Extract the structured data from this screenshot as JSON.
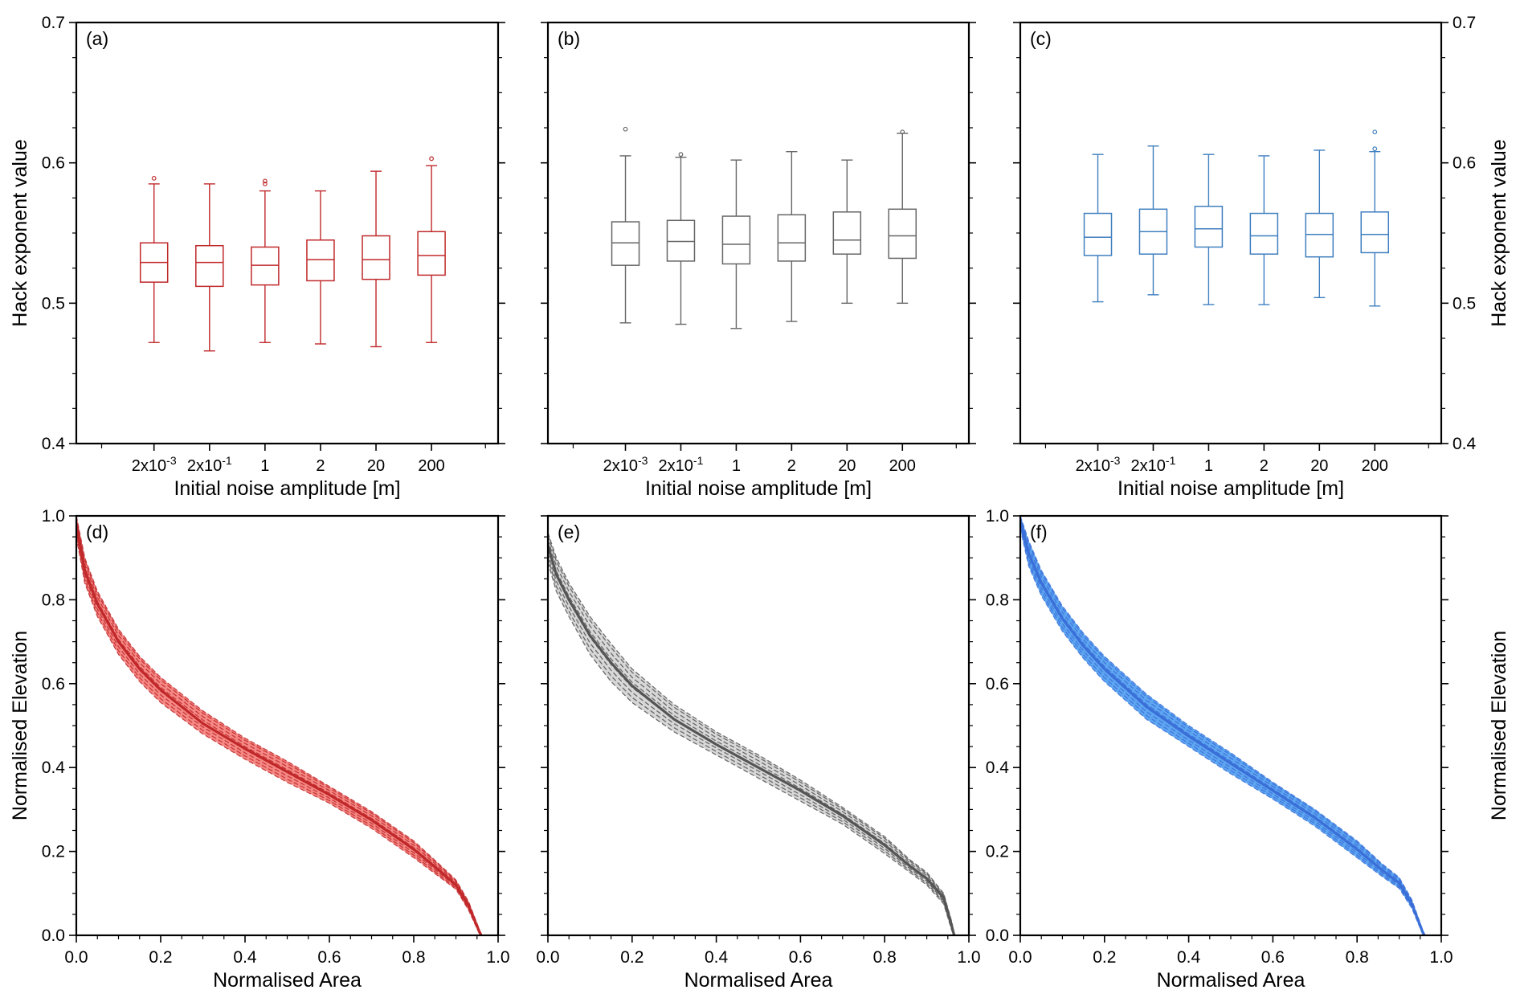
{
  "figure": {
    "background": "#ffffff",
    "axis_color": "#000000"
  },
  "chart_data": [
    {
      "type": "box",
      "panel_label": "(a)",
      "color": "#c0282a",
      "categories": [
        "2x10-3",
        "2x10-1",
        "1",
        "2",
        "20",
        "200"
      ],
      "category_labels": [
        {
          "base": "2x10",
          "exp": "-3"
        },
        {
          "base": "2x10",
          "exp": "-1"
        },
        {
          "base": "1",
          "exp": ""
        },
        {
          "base": "2",
          "exp": ""
        },
        {
          "base": "20",
          "exp": ""
        },
        {
          "base": "200",
          "exp": ""
        }
      ],
      "xlabel": "Initial noise amplitude [m]",
      "ylabel": "Hack exponent value",
      "ylim": [
        0.4,
        0.7
      ],
      "yticks": [
        "0.4",
        "0.5",
        "0.6",
        "0.7"
      ],
      "ytick_values": [
        0.4,
        0.5,
        0.6,
        0.7
      ],
      "boxes": [
        {
          "min": 0.472,
          "q1": 0.515,
          "median": 0.529,
          "q3": 0.543,
          "max": 0.585,
          "outliers": [
            0.589
          ]
        },
        {
          "min": 0.466,
          "q1": 0.512,
          "median": 0.529,
          "q3": 0.541,
          "max": 0.585,
          "outliers": []
        },
        {
          "min": 0.472,
          "q1": 0.513,
          "median": 0.527,
          "q3": 0.54,
          "max": 0.58,
          "outliers": [
            0.585,
            0.587
          ]
        },
        {
          "min": 0.471,
          "q1": 0.516,
          "median": 0.531,
          "q3": 0.545,
          "max": 0.58,
          "outliers": []
        },
        {
          "min": 0.469,
          "q1": 0.517,
          "median": 0.531,
          "q3": 0.548,
          "max": 0.594,
          "outliers": []
        },
        {
          "min": 0.472,
          "q1": 0.52,
          "median": 0.534,
          "q3": 0.551,
          "max": 0.598,
          "outliers": [
            0.603
          ]
        }
      ]
    },
    {
      "type": "box",
      "panel_label": "(b)",
      "color": "#666666",
      "categories": [
        "2x10-3",
        "2x10-1",
        "1",
        "2",
        "20",
        "200"
      ],
      "category_labels": [
        {
          "base": "2x10",
          "exp": "-3"
        },
        {
          "base": "2x10",
          "exp": "-1"
        },
        {
          "base": "1",
          "exp": ""
        },
        {
          "base": "2",
          "exp": ""
        },
        {
          "base": "20",
          "exp": ""
        },
        {
          "base": "200",
          "exp": ""
        }
      ],
      "xlabel": "Initial noise amplitude [m]",
      "ylabel": "",
      "ylim": [
        0.4,
        0.7
      ],
      "yticks": [],
      "ytick_values": [
        0.4,
        0.5,
        0.6,
        0.7
      ],
      "boxes": [
        {
          "min": 0.486,
          "q1": 0.527,
          "median": 0.543,
          "q3": 0.558,
          "max": 0.605,
          "outliers": [
            0.624
          ]
        },
        {
          "min": 0.485,
          "q1": 0.53,
          "median": 0.544,
          "q3": 0.559,
          "max": 0.604,
          "outliers": [
            0.606
          ]
        },
        {
          "min": 0.482,
          "q1": 0.528,
          "median": 0.542,
          "q3": 0.562,
          "max": 0.602,
          "outliers": []
        },
        {
          "min": 0.487,
          "q1": 0.53,
          "median": 0.543,
          "q3": 0.563,
          "max": 0.608,
          "outliers": []
        },
        {
          "min": 0.5,
          "q1": 0.535,
          "median": 0.545,
          "q3": 0.565,
          "max": 0.602,
          "outliers": []
        },
        {
          "min": 0.5,
          "q1": 0.532,
          "median": 0.548,
          "q3": 0.567,
          "max": 0.621,
          "outliers": [
            0.622
          ]
        }
      ]
    },
    {
      "type": "box",
      "panel_label": "(c)",
      "color": "#3f7fbf",
      "categories": [
        "2x10-3",
        "2x10-1",
        "1",
        "2",
        "20",
        "200"
      ],
      "category_labels": [
        {
          "base": "2x10",
          "exp": "-3"
        },
        {
          "base": "2x10",
          "exp": "-1"
        },
        {
          "base": "1",
          "exp": ""
        },
        {
          "base": "2",
          "exp": ""
        },
        {
          "base": "20",
          "exp": ""
        },
        {
          "base": "200",
          "exp": ""
        }
      ],
      "xlabel": "Initial noise amplitude [m]",
      "ylabel": "Hack exponent value",
      "ylim": [
        0.4,
        0.7
      ],
      "yticks": [
        "0.4",
        "0.5",
        "0.6",
        "0.7"
      ],
      "ytick_values": [
        0.4,
        0.5,
        0.6,
        0.7
      ],
      "boxes": [
        {
          "min": 0.501,
          "q1": 0.534,
          "median": 0.547,
          "q3": 0.564,
          "max": 0.606,
          "outliers": []
        },
        {
          "min": 0.506,
          "q1": 0.535,
          "median": 0.551,
          "q3": 0.567,
          "max": 0.612,
          "outliers": []
        },
        {
          "min": 0.499,
          "q1": 0.54,
          "median": 0.553,
          "q3": 0.569,
          "max": 0.606,
          "outliers": []
        },
        {
          "min": 0.499,
          "q1": 0.535,
          "median": 0.548,
          "q3": 0.564,
          "max": 0.605,
          "outliers": []
        },
        {
          "min": 0.504,
          "q1": 0.533,
          "median": 0.549,
          "q3": 0.564,
          "max": 0.609,
          "outliers": []
        },
        {
          "min": 0.498,
          "q1": 0.536,
          "median": 0.549,
          "q3": 0.565,
          "max": 0.608,
          "outliers": [
            0.61,
            0.622
          ]
        }
      ]
    },
    {
      "type": "line",
      "panel_label": "(d)",
      "color": "#c0282a",
      "fill": "#f47c78",
      "xlabel": "Normalised Area",
      "ylabel": "Normalised Elevation",
      "xlim": [
        0.0,
        1.0
      ],
      "ylim": [
        0.0,
        1.0
      ],
      "xticks": [
        "0.0",
        "0.2",
        "0.4",
        "0.6",
        "0.8",
        "1.0"
      ],
      "yticks": [
        "0.0",
        "0.2",
        "0.4",
        "0.6",
        "0.8",
        "1.0"
      ],
      "tick_values": [
        0.0,
        0.2,
        0.4,
        0.6,
        0.8,
        1.0
      ],
      "x": [
        0.0,
        0.02,
        0.05,
        0.1,
        0.15,
        0.2,
        0.3,
        0.4,
        0.5,
        0.6,
        0.7,
        0.8,
        0.86,
        0.9,
        0.93,
        0.955,
        0.96
      ],
      "mean": [
        0.98,
        0.87,
        0.79,
        0.7,
        0.635,
        0.585,
        0.505,
        0.445,
        0.39,
        0.335,
        0.275,
        0.205,
        0.155,
        0.12,
        0.07,
        0.01,
        0.0
      ],
      "upper": [
        1.0,
        0.9,
        0.82,
        0.73,
        0.665,
        0.615,
        0.535,
        0.47,
        0.415,
        0.355,
        0.295,
        0.225,
        0.17,
        0.132,
        0.08,
        0.015,
        0.0
      ],
      "lower": [
        0.95,
        0.84,
        0.76,
        0.67,
        0.605,
        0.555,
        0.48,
        0.42,
        0.365,
        0.315,
        0.255,
        0.185,
        0.14,
        0.11,
        0.06,
        0.005,
        0.0
      ]
    },
    {
      "type": "line",
      "panel_label": "(e)",
      "color": "#555555",
      "fill": "#d4d4d4",
      "xlabel": "Normalised Area",
      "ylabel": "",
      "xlim": [
        0.0,
        1.0
      ],
      "ylim": [
        0.0,
        1.0
      ],
      "xticks": [
        "0.0",
        "0.2",
        "0.4",
        "0.6",
        "0.8",
        "1.0"
      ],
      "yticks": [],
      "tick_values": [
        0.0,
        0.2,
        0.4,
        0.6,
        0.8,
        1.0
      ],
      "x": [
        0.0,
        0.02,
        0.05,
        0.1,
        0.15,
        0.2,
        0.3,
        0.4,
        0.5,
        0.6,
        0.7,
        0.8,
        0.86,
        0.9,
        0.94,
        0.96,
        0.965
      ],
      "mean": [
        0.93,
        0.86,
        0.8,
        0.715,
        0.65,
        0.595,
        0.515,
        0.455,
        0.4,
        0.345,
        0.285,
        0.215,
        0.165,
        0.135,
        0.09,
        0.02,
        0.0
      ],
      "upper": [
        0.96,
        0.9,
        0.84,
        0.76,
        0.695,
        0.635,
        0.55,
        0.485,
        0.43,
        0.37,
        0.305,
        0.235,
        0.18,
        0.15,
        0.1,
        0.03,
        0.0
      ],
      "lower": [
        0.89,
        0.82,
        0.76,
        0.67,
        0.605,
        0.555,
        0.485,
        0.43,
        0.375,
        0.32,
        0.265,
        0.195,
        0.15,
        0.12,
        0.075,
        0.01,
        0.0
      ]
    },
    {
      "type": "line",
      "panel_label": "(f)",
      "color": "#3a6fd8",
      "fill": "#4c9cf0",
      "xlabel": "Normalised Area",
      "ylabel": "Normalised Elevation",
      "xlim": [
        0.0,
        1.0
      ],
      "ylim": [
        0.0,
        1.0
      ],
      "xticks": [
        "0.0",
        "0.2",
        "0.4",
        "0.6",
        "0.8",
        "1.0"
      ],
      "yticks": [
        "0.0",
        "0.2",
        "0.4",
        "0.6",
        "0.8",
        "1.0"
      ],
      "tick_values": [
        0.0,
        0.2,
        0.4,
        0.6,
        0.8,
        1.0
      ],
      "x": [
        0.0,
        0.02,
        0.05,
        0.1,
        0.15,
        0.2,
        0.3,
        0.4,
        0.5,
        0.6,
        0.7,
        0.8,
        0.86,
        0.9,
        0.93,
        0.955,
        0.96
      ],
      "mean": [
        0.99,
        0.91,
        0.84,
        0.755,
        0.69,
        0.635,
        0.545,
        0.475,
        0.41,
        0.345,
        0.28,
        0.205,
        0.155,
        0.125,
        0.075,
        0.01,
        0.0
      ],
      "upper": [
        1.0,
        0.94,
        0.87,
        0.785,
        0.72,
        0.665,
        0.575,
        0.5,
        0.435,
        0.365,
        0.3,
        0.225,
        0.17,
        0.138,
        0.085,
        0.015,
        0.0
      ],
      "lower": [
        0.97,
        0.88,
        0.81,
        0.725,
        0.66,
        0.605,
        0.515,
        0.45,
        0.385,
        0.325,
        0.26,
        0.185,
        0.14,
        0.112,
        0.065,
        0.005,
        0.0
      ]
    }
  ]
}
